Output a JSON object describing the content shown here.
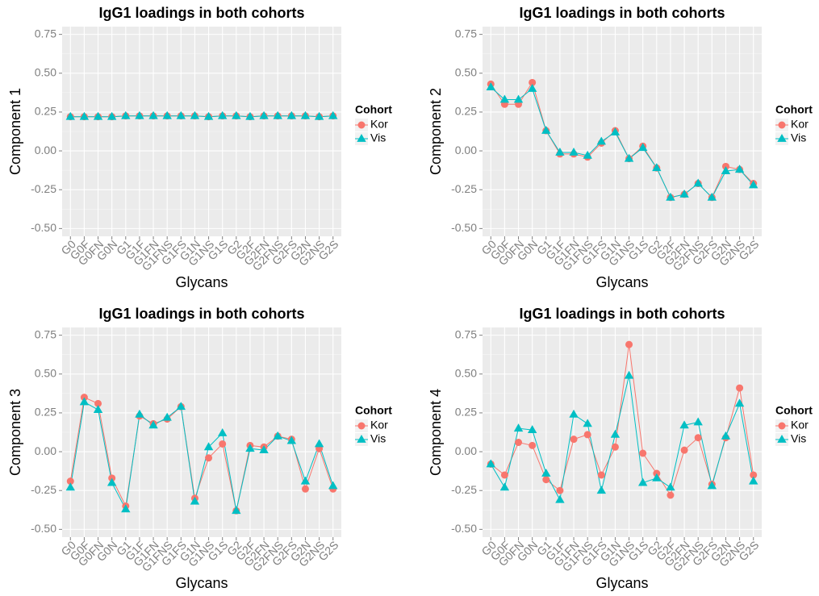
{
  "chart_data": [
    {
      "type": "line",
      "title": "IgG1 loadings in both cohorts",
      "x_label": "Glycans",
      "y_label": "Component 1",
      "legend_title": "Cohort",
      "legend": "right",
      "grid": true,
      "categories": [
        "G0",
        "G0F",
        "G0FN",
        "G0N",
        "G1",
        "G1F",
        "G1FN",
        "G1FNS",
        "G1FS",
        "G1N",
        "G1NS",
        "G1S",
        "G2",
        "G2F",
        "G2FN",
        "G2FNS",
        "G2FS",
        "G2N",
        "G2NS",
        "G2S"
      ],
      "series": [
        {
          "name": "Kor",
          "color": "#F8766D",
          "marker": "circle",
          "values": [
            0.22,
            0.22,
            0.22,
            0.22,
            0.225,
            0.225,
            0.225,
            0.225,
            0.225,
            0.225,
            0.22,
            0.225,
            0.225,
            0.22,
            0.225,
            0.225,
            0.225,
            0.225,
            0.22,
            0.225
          ]
        },
        {
          "name": "Vis",
          "color": "#00BFC4",
          "marker": "triangle",
          "values": [
            0.22,
            0.22,
            0.22,
            0.22,
            0.225,
            0.225,
            0.225,
            0.225,
            0.225,
            0.225,
            0.22,
            0.225,
            0.225,
            0.22,
            0.225,
            0.225,
            0.225,
            0.225,
            0.22,
            0.225
          ]
        }
      ],
      "ylim": [
        -0.55,
        0.8
      ],
      "yticks": [
        {
          "value": -0.5,
          "label": "-0.50"
        },
        -0.25,
        {
          "value": 0,
          "label": "0.00"
        },
        0.25,
        {
          "value": 0.5,
          "label": "0.50"
        },
        0.75
      ]
    },
    {
      "type": "line",
      "title": "IgG1 loadings in both cohorts",
      "x_label": "Glycans",
      "y_label": "Component 2",
      "legend_title": "Cohort",
      "legend": "right",
      "grid": true,
      "categories": [
        "G0",
        "G0F",
        "G0FN",
        "G0N",
        "G1",
        "G1F",
        "G1FN",
        "G1FNS",
        "G1FS",
        "G1N",
        "G1NS",
        "G1S",
        "G2",
        "G2F",
        "G2FN",
        "G2FNS",
        "G2FS",
        "G2N",
        "G2NS",
        "G2S"
      ],
      "series": [
        {
          "name": "Kor",
          "color": "#F8766D",
          "marker": "circle",
          "values": [
            0.43,
            0.3,
            0.3,
            0.44,
            0.13,
            -0.02,
            -0.02,
            -0.04,
            0.05,
            0.13,
            -0.05,
            0.03,
            -0.11,
            -0.3,
            -0.28,
            -0.21,
            -0.3,
            -0.1,
            -0.12,
            -0.21
          ]
        },
        {
          "name": "Vis",
          "color": "#00BFC4",
          "marker": "triangle",
          "values": [
            0.41,
            0.33,
            0.33,
            0.4,
            0.13,
            -0.01,
            -0.01,
            -0.03,
            0.06,
            0.12,
            -0.05,
            0.02,
            -0.11,
            -0.3,
            -0.28,
            -0.21,
            -0.3,
            -0.13,
            -0.12,
            -0.22
          ]
        }
      ],
      "ylim": [
        -0.55,
        0.8
      ],
      "yticks": [
        {
          "value": -0.5,
          "label": "-0.50"
        },
        -0.25,
        {
          "value": 0,
          "label": "0.00"
        },
        0.25,
        {
          "value": 0.5,
          "label": "0.50"
        },
        0.75
      ]
    },
    {
      "type": "line",
      "title": "IgG1 loadings in both cohorts",
      "x_label": "Glycans",
      "y_label": "Component 3",
      "legend_title": "Cohort",
      "legend": "right",
      "grid": true,
      "categories": [
        "G0",
        "G0F",
        "G0FN",
        "G0N",
        "G1",
        "G1F",
        "G1FN",
        "G1FNS",
        "G1FS",
        "G1N",
        "G1NS",
        "G1S",
        "G2",
        "G2F",
        "G2FN",
        "G2FNS",
        "G2FS",
        "G2N",
        "G2NS",
        "G2S"
      ],
      "series": [
        {
          "name": "Kor",
          "color": "#F8766D",
          "marker": "circle",
          "values": [
            -0.19,
            0.35,
            0.31,
            -0.17,
            -0.35,
            0.23,
            0.18,
            0.21,
            0.29,
            -0.3,
            -0.04,
            0.05,
            -0.38,
            0.04,
            0.03,
            0.1,
            0.08,
            -0.24,
            0.02,
            -0.24
          ]
        },
        {
          "name": "Vis",
          "color": "#00BFC4",
          "marker": "triangle",
          "values": [
            -0.23,
            0.32,
            0.27,
            -0.2,
            -0.37,
            0.24,
            0.17,
            0.22,
            0.29,
            -0.32,
            0.03,
            0.12,
            -0.38,
            0.02,
            0.01,
            0.1,
            0.07,
            -0.19,
            0.05,
            -0.22
          ]
        }
      ],
      "ylim": [
        -0.55,
        0.8
      ],
      "yticks": [
        {
          "value": -0.5,
          "label": "-0.50"
        },
        -0.25,
        {
          "value": 0,
          "label": "0.00"
        },
        0.25,
        {
          "value": 0.5,
          "label": "0.50"
        },
        0.75
      ]
    },
    {
      "type": "line",
      "title": "IgG1 loadings in both cohorts",
      "x_label": "Glycans",
      "y_label": "Component 4",
      "legend_title": "Cohort",
      "legend": "right",
      "grid": true,
      "categories": [
        "G0",
        "G0F",
        "G0FN",
        "G0N",
        "G1",
        "G1F",
        "G1FN",
        "G1FNS",
        "G1FS",
        "G1N",
        "G1NS",
        "G1S",
        "G2",
        "G2F",
        "G2FN",
        "G2FNS",
        "G2FS",
        "G2N",
        "G2NS",
        "G2S"
      ],
      "series": [
        {
          "name": "Kor",
          "color": "#F8766D",
          "marker": "circle",
          "values": [
            -0.08,
            -0.15,
            0.06,
            0.04,
            -0.18,
            -0.25,
            0.08,
            0.11,
            -0.15,
            0.03,
            0.69,
            -0.01,
            -0.14,
            -0.28,
            0.01,
            0.09,
            -0.21,
            0.09,
            0.41,
            -0.15
          ]
        },
        {
          "name": "Vis",
          "color": "#00BFC4",
          "marker": "triangle",
          "values": [
            -0.08,
            -0.23,
            0.15,
            0.14,
            -0.14,
            -0.31,
            0.24,
            0.18,
            -0.25,
            0.11,
            0.49,
            -0.2,
            -0.17,
            -0.23,
            0.17,
            0.19,
            -0.22,
            0.1,
            0.31,
            -0.19
          ]
        }
      ],
      "ylim": [
        -0.55,
        0.8
      ],
      "yticks": [
        {
          "value": -0.5,
          "label": "-0.50"
        },
        -0.25,
        {
          "value": 0,
          "label": "0.00"
        },
        0.25,
        {
          "value": 0.5,
          "label": "0.50"
        },
        0.75
      ]
    }
  ]
}
